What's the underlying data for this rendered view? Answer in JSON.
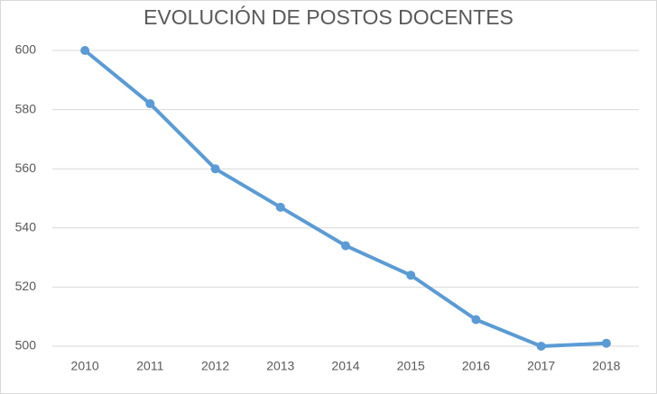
{
  "chart_data": {
    "type": "line",
    "title": "EVOLUCIÓN DE POSTOS DOCENTES",
    "categories": [
      "2010",
      "2011",
      "2012",
      "2013",
      "2014",
      "2015",
      "2016",
      "2017",
      "2018"
    ],
    "values": [
      600,
      582,
      560,
      547,
      534,
      524,
      509,
      500,
      501
    ],
    "color": "#5b9bd5",
    "ylim": [
      500,
      600
    ],
    "yticks": [
      500,
      520,
      540,
      560,
      580,
      600
    ],
    "grid": true
  }
}
